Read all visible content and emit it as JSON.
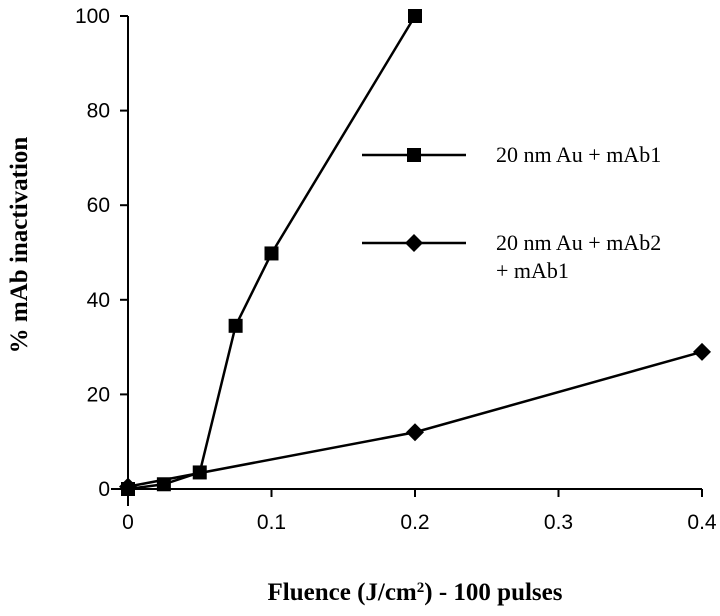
{
  "chart_data": {
    "type": "line",
    "xlabel": {
      "main": "Fluence (J/cm",
      "sup": "2",
      "rest": ") - 100 pulses"
    },
    "ylabel": "% mAb inactivation",
    "xlim": [
      0,
      0.4
    ],
    "ylim": [
      0,
      100
    ],
    "x_ticks": [
      {
        "value": 0,
        "label": "0"
      },
      {
        "value": 0.1,
        "label": "0.1"
      },
      {
        "value": 0.2,
        "label": "0.2"
      },
      {
        "value": 0.3,
        "label": "0.3"
      },
      {
        "value": 0.4,
        "label": "0.4"
      }
    ],
    "y_ticks": [
      {
        "value": 0,
        "label": "0"
      },
      {
        "value": 20,
        "label": "20"
      },
      {
        "value": 40,
        "label": "40"
      },
      {
        "value": 60,
        "label": "60"
      },
      {
        "value": 80,
        "label": "80"
      },
      {
        "value": 100,
        "label": "100"
      }
    ],
    "grid": false,
    "legend_placement": "right",
    "series": [
      {
        "name": "20 nm Au + mAb1",
        "legend_lines": [
          "20 nm Au + mAb1"
        ],
        "marker": "square",
        "color": "#000000",
        "points": [
          {
            "x": 0,
            "y": 0
          },
          {
            "x": 0.025,
            "y": 1
          },
          {
            "x": 0.05,
            "y": 3.5
          },
          {
            "x": 0.075,
            "y": 34.5
          },
          {
            "x": 0.1,
            "y": 49.8
          },
          {
            "x": 0.2,
            "y": 100
          }
        ]
      },
      {
        "name": "20 nm Au + mAb2 + mAb1",
        "legend_lines": [
          "20 nm Au + mAb2",
          "+ mAb1"
        ],
        "marker": "diamond",
        "color": "#000000",
        "points": [
          {
            "x": 0,
            "y": 0.5
          },
          {
            "x": 0.2,
            "y": 12
          },
          {
            "x": 0.4,
            "y": 29
          }
        ]
      }
    ]
  }
}
